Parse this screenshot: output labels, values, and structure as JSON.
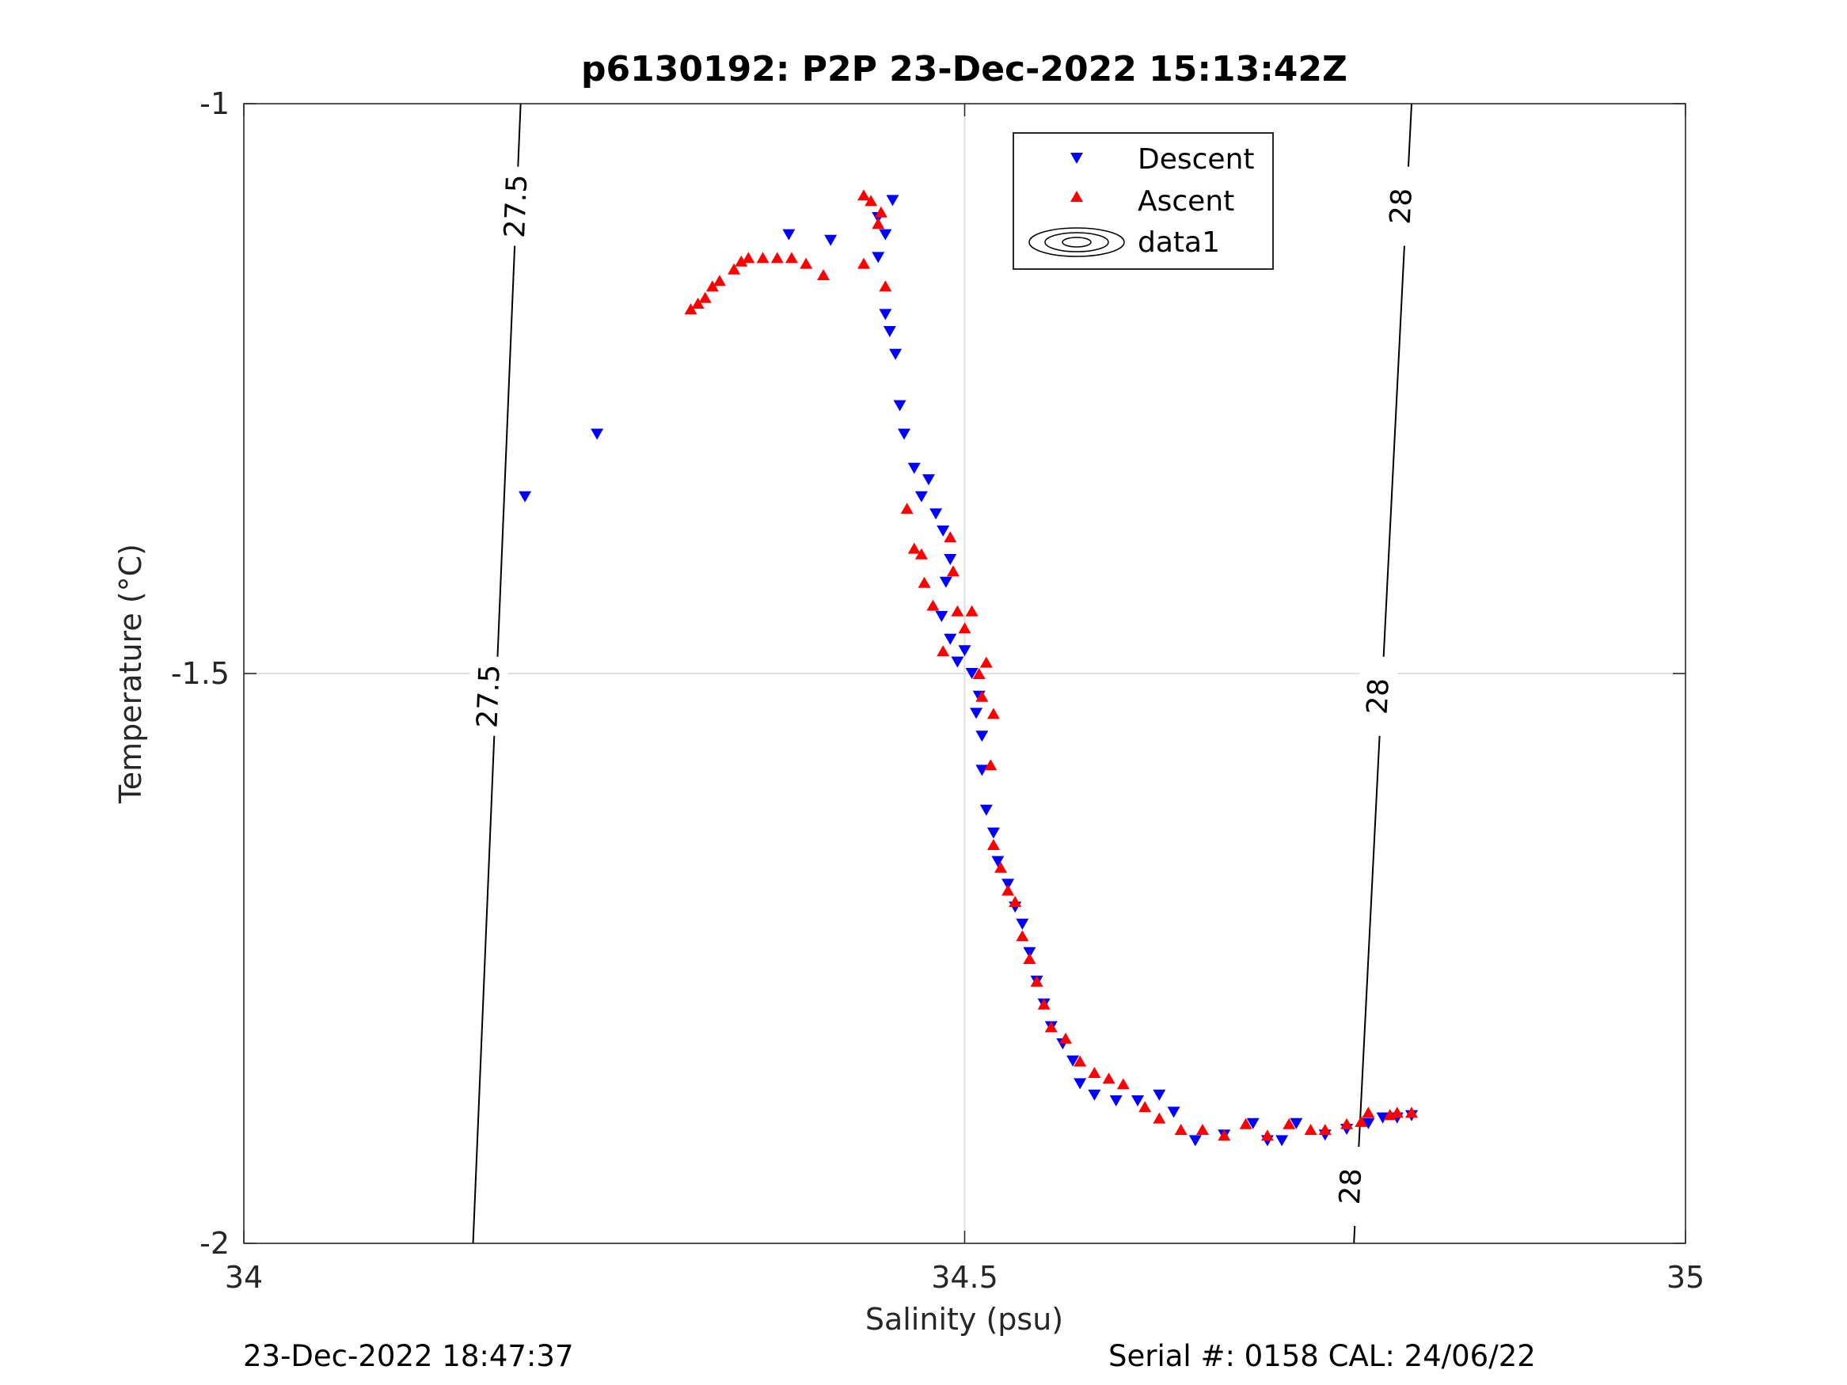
{
  "chart_data": {
    "type": "scatter",
    "title": "p6130192: P2P 23-Dec-2022 15:13:42Z",
    "xlabel": "Salinity (psu)",
    "ylabel": "Temperature (°C)",
    "xlim": [
      34,
      35
    ],
    "ylim": [
      -2,
      -1
    ],
    "x_ticks": [
      "34",
      "34.5",
      "35"
    ],
    "y_ticks": [
      "-1",
      "-1.5",
      "-2"
    ],
    "grid": true,
    "legend_position": "top-right",
    "legend": [
      "Descent",
      "Ascent",
      "data1"
    ],
    "contours": [
      {
        "label": "27.5",
        "points": [
          [
            34.192,
            -1.0
          ],
          [
            34.159,
            -2.0
          ]
        ],
        "label_positions": [
          [
            34.189,
            -1.09
          ],
          [
            34.17,
            -1.52
          ]
        ]
      },
      {
        "label": "28",
        "points": [
          [
            34.81,
            -1.0
          ],
          [
            34.77,
            -2.0
          ]
        ],
        "label_positions": [
          [
            34.803,
            -1.09
          ],
          [
            34.787,
            -1.52
          ],
          [
            34.768,
            -1.95
          ]
        ]
      }
    ],
    "series": [
      {
        "name": "Descent",
        "color": "#0000ff",
        "marker": "triangle-down",
        "points": [
          [
            34.195,
            -1.345
          ],
          [
            34.245,
            -1.29
          ],
          [
            34.378,
            -1.115
          ],
          [
            34.407,
            -1.12
          ],
          [
            34.45,
            -1.085
          ],
          [
            34.44,
            -1.1
          ],
          [
            34.445,
            -1.115
          ],
          [
            34.44,
            -1.135
          ],
          [
            34.445,
            -1.185
          ],
          [
            34.448,
            -1.2
          ],
          [
            34.452,
            -1.22
          ],
          [
            34.455,
            -1.265
          ],
          [
            34.458,
            -1.29
          ],
          [
            34.465,
            -1.32
          ],
          [
            34.47,
            -1.345
          ],
          [
            34.475,
            -1.33
          ],
          [
            34.48,
            -1.36
          ],
          [
            34.485,
            -1.375
          ],
          [
            34.49,
            -1.4
          ],
          [
            34.487,
            -1.42
          ],
          [
            34.484,
            -1.45
          ],
          [
            34.49,
            -1.47
          ],
          [
            34.495,
            -1.49
          ],
          [
            34.5,
            -1.48
          ],
          [
            34.505,
            -1.5
          ],
          [
            34.51,
            -1.52
          ],
          [
            34.512,
            -1.555
          ],
          [
            34.508,
            -1.535
          ],
          [
            34.512,
            -1.585
          ],
          [
            34.515,
            -1.62
          ],
          [
            34.52,
            -1.64
          ],
          [
            34.523,
            -1.665
          ],
          [
            34.53,
            -1.685
          ],
          [
            34.535,
            -1.705
          ],
          [
            34.54,
            -1.72
          ],
          [
            34.545,
            -1.745
          ],
          [
            34.55,
            -1.77
          ],
          [
            34.555,
            -1.79
          ],
          [
            34.56,
            -1.81
          ],
          [
            34.568,
            -1.825
          ],
          [
            34.575,
            -1.84
          ],
          [
            34.58,
            -1.86
          ],
          [
            34.59,
            -1.87
          ],
          [
            34.605,
            -1.875
          ],
          [
            34.62,
            -1.875
          ],
          [
            34.635,
            -1.87
          ],
          [
            34.645,
            -1.885
          ],
          [
            34.66,
            -1.91
          ],
          [
            34.68,
            -1.905
          ],
          [
            34.7,
            -1.895
          ],
          [
            34.71,
            -1.91
          ],
          [
            34.72,
            -1.91
          ],
          [
            34.73,
            -1.895
          ],
          [
            34.75,
            -1.905
          ],
          [
            34.765,
            -1.9
          ],
          [
            34.78,
            -1.895
          ],
          [
            34.79,
            -1.89
          ],
          [
            34.8,
            -1.89
          ],
          [
            34.81,
            -1.888
          ]
        ]
      },
      {
        "name": "Ascent",
        "color": "#ff0000",
        "marker": "triangle-up",
        "points": [
          [
            34.31,
            -1.18
          ],
          [
            34.315,
            -1.175
          ],
          [
            34.32,
            -1.17
          ],
          [
            34.325,
            -1.16
          ],
          [
            34.33,
            -1.155
          ],
          [
            34.34,
            -1.145
          ],
          [
            34.345,
            -1.138
          ],
          [
            34.35,
            -1.135
          ],
          [
            34.36,
            -1.135
          ],
          [
            34.37,
            -1.135
          ],
          [
            34.38,
            -1.135
          ],
          [
            34.39,
            -1.14
          ],
          [
            34.402,
            -1.15
          ],
          [
            34.43,
            -1.08
          ],
          [
            34.435,
            -1.085
          ],
          [
            34.44,
            -1.105
          ],
          [
            34.442,
            -1.095
          ],
          [
            34.43,
            -1.14
          ],
          [
            34.445,
            -1.16
          ],
          [
            34.46,
            -1.355
          ],
          [
            34.465,
            -1.39
          ],
          [
            34.47,
            -1.395
          ],
          [
            34.472,
            -1.42
          ],
          [
            34.478,
            -1.44
          ],
          [
            34.485,
            -1.48
          ],
          [
            34.49,
            -1.38
          ],
          [
            34.492,
            -1.41
          ],
          [
            34.495,
            -1.445
          ],
          [
            34.5,
            -1.46
          ],
          [
            34.505,
            -1.445
          ],
          [
            34.51,
            -1.5
          ],
          [
            34.512,
            -1.52
          ],
          [
            34.515,
            -1.49
          ],
          [
            34.52,
            -1.535
          ],
          [
            34.518,
            -1.58
          ],
          [
            34.52,
            -1.65
          ],
          [
            34.525,
            -1.67
          ],
          [
            34.53,
            -1.69
          ],
          [
            34.535,
            -1.7
          ],
          [
            34.54,
            -1.73
          ],
          [
            34.545,
            -1.75
          ],
          [
            34.55,
            -1.77
          ],
          [
            34.555,
            -1.79
          ],
          [
            34.56,
            -1.81
          ],
          [
            34.57,
            -1.82
          ],
          [
            34.58,
            -1.84
          ],
          [
            34.59,
            -1.85
          ],
          [
            34.6,
            -1.855
          ],
          [
            34.61,
            -1.86
          ],
          [
            34.625,
            -1.88
          ],
          [
            34.635,
            -1.89
          ],
          [
            34.65,
            -1.9
          ],
          [
            34.665,
            -1.9
          ],
          [
            34.68,
            -1.905
          ],
          [
            34.695,
            -1.895
          ],
          [
            34.71,
            -1.905
          ],
          [
            34.725,
            -1.895
          ],
          [
            34.74,
            -1.9
          ],
          [
            34.75,
            -1.9
          ],
          [
            34.765,
            -1.895
          ],
          [
            34.775,
            -1.893
          ],
          [
            34.78,
            -1.885
          ],
          [
            34.795,
            -1.887
          ],
          [
            34.8,
            -1.885
          ],
          [
            34.81,
            -1.885
          ]
        ]
      }
    ]
  },
  "footer": {
    "timestamp": "23-Dec-2022 18:47:37",
    "serial_cal": "Serial #: 0158  CAL: 24/06/22"
  }
}
